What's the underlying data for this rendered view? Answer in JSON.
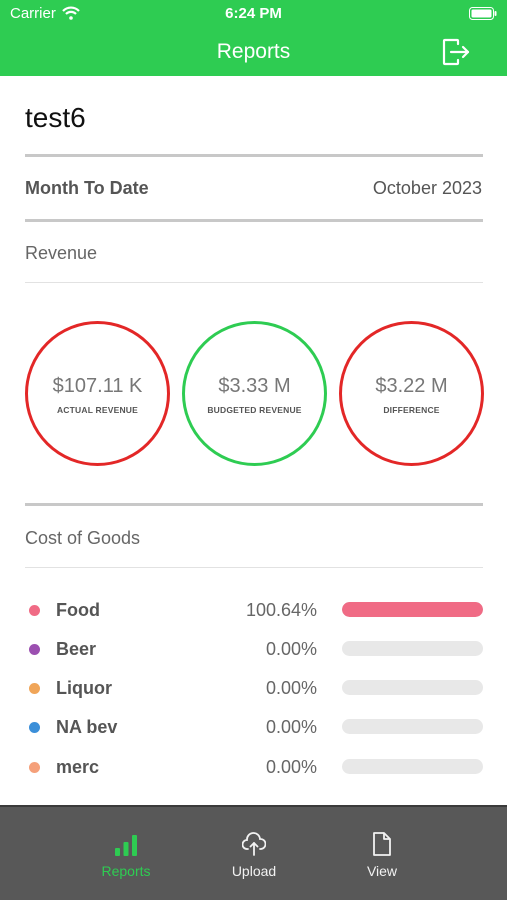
{
  "status_bar": {
    "carrier": "Carrier",
    "time": "6:24 PM"
  },
  "nav": {
    "title": "Reports",
    "logout_icon": "logout-icon"
  },
  "user": {
    "name": "test6"
  },
  "period": {
    "label": "Month To Date",
    "value": "October 2023"
  },
  "revenue": {
    "section_title": "Revenue",
    "circles": [
      {
        "amount": "$107.11 K",
        "caption": "ACTUAL REVENUE",
        "color": "#e32727"
      },
      {
        "amount": "$3.33 M",
        "caption": "BUDGETED REVENUE",
        "color": "#2ecc52"
      },
      {
        "amount": "$3.22 M",
        "caption": "DIFFERENCE",
        "color": "#e32727"
      }
    ]
  },
  "cost_of_goods": {
    "section_title": "Cost of Goods",
    "items": [
      {
        "name": "Food",
        "percent": "100.64%",
        "fill_fraction": 1.0,
        "color": "#f06b85"
      },
      {
        "name": "Beer",
        "percent": "0.00%",
        "fill_fraction": 0,
        "color": "#9b4fb0"
      },
      {
        "name": "Liquor",
        "percent": "0.00%",
        "fill_fraction": 0,
        "color": "#f0a558"
      },
      {
        "name": "NA bev",
        "percent": "0.00%",
        "fill_fraction": 0,
        "color": "#3b8fd9"
      },
      {
        "name": "merc",
        "percent": "0.00%",
        "fill_fraction": 0,
        "color": "#f5a07a"
      }
    ]
  },
  "tabs": [
    {
      "label": "Reports",
      "icon": "bar-chart-icon",
      "active": true
    },
    {
      "label": "Upload",
      "icon": "cloud-upload-icon",
      "active": false
    },
    {
      "label": "View",
      "icon": "document-icon",
      "active": false
    }
  ],
  "colors": {
    "brand_green": "#2ecc52",
    "tab_bar": "#585858",
    "alert_red": "#e32727"
  }
}
